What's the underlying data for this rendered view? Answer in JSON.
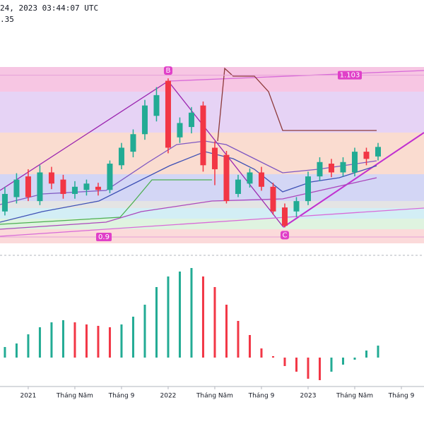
{
  "header": {
    "time": "24, 2023 03:44:07 UTC",
    "price": ".35"
  },
  "chart_data": [
    {
      "type": "candlestick",
      "xlim": [
        -0.42,
        35.94
      ],
      "ylim": [
        0.892,
        1.162
      ],
      "up_color": "#22ab94",
      "down_color": "#f23645",
      "open": [
        0.932,
        0.95,
        0.976,
        0.945,
        0.981,
        0.972,
        0.954,
        0.959,
        0.963,
        0.959,
        0.99,
        1.007,
        1.029,
        1.052,
        1.096,
        1.025,
        1.038,
        1.065,
        1.012,
        1.003,
        0.954,
        0.967,
        0.981,
        0.963,
        0.937,
        0.932,
        0.945,
        0.976,
        0.992,
        0.981,
        0.981,
        1.007,
        1.001
      ],
      "close": [
        0.954,
        0.972,
        0.95,
        0.981,
        0.967,
        0.954,
        0.963,
        0.967,
        0.959,
        0.992,
        1.012,
        1.029,
        1.065,
        1.078,
        1.012,
        1.043,
        1.056,
        0.99,
        0.985,
        0.945,
        0.972,
        0.981,
        0.963,
        0.932,
        0.914,
        0.945,
        0.976,
        0.994,
        0.981,
        0.994,
        1.007,
        0.998,
        1.013
      ],
      "high": [
        0.963,
        0.98,
        0.985,
        0.99,
        0.988,
        0.978,
        0.97,
        0.972,
        0.968,
        0.996,
        1.018,
        1.035,
        1.072,
        1.088,
        1.099,
        1.05,
        1.063,
        1.07,
        1.02,
        1.008,
        0.978,
        0.986,
        0.988,
        0.968,
        0.942,
        0.95,
        0.982,
        1.0,
        0.998,
        1.0,
        1.012,
        1.012,
        1.018
      ],
      "low": [
        0.927,
        0.942,
        0.945,
        0.94,
        0.96,
        0.948,
        0.948,
        0.952,
        0.952,
        0.955,
        0.985,
        1.0,
        1.022,
        1.045,
        1.005,
        1.018,
        1.03,
        0.982,
        0.965,
        0.942,
        0.95,
        0.962,
        0.958,
        0.928,
        0.912,
        0.925,
        0.94,
        0.97,
        0.975,
        0.976,
        0.976,
        0.99,
        0.996
      ],
      "fib_levels": [
        {
          "value": 0.9,
          "label": "0.9"
        },
        {
          "value": 1.103,
          "label": "1.103"
        }
      ],
      "fib_color": "#e040c8",
      "wave_labels": [
        "B",
        "C"
      ],
      "xticks": [
        {
          "value": 2,
          "label": "2021"
        },
        {
          "value": 6,
          "label": "Tháng Năm"
        },
        {
          "value": 10,
          "label": "Tháng 9"
        },
        {
          "value": 14,
          "label": "2022"
        },
        {
          "value": 18,
          "label": "Tháng Năm"
        },
        {
          "value": 22,
          "label": "Tháng 9"
        },
        {
          "value": 26,
          "label": "2023"
        },
        {
          "value": 30,
          "label": "Tháng Năm"
        },
        {
          "value": 34,
          "label": "Tháng 9"
        }
      ]
    },
    {
      "type": "histogram",
      "xlim": [
        -0.42,
        35.94
      ],
      "ylim": [
        -40,
        137
      ],
      "up_color": "#22ab94",
      "down_color": "#f23645",
      "values": [
        15,
        20,
        33,
        43,
        50,
        53,
        50,
        47,
        45,
        43,
        47,
        58,
        75,
        100,
        115,
        122,
        127,
        115,
        100,
        75,
        52,
        32,
        13,
        2,
        -12,
        -20,
        -30,
        -32,
        -20,
        -10,
        -3,
        10,
        17
      ]
    }
  ]
}
